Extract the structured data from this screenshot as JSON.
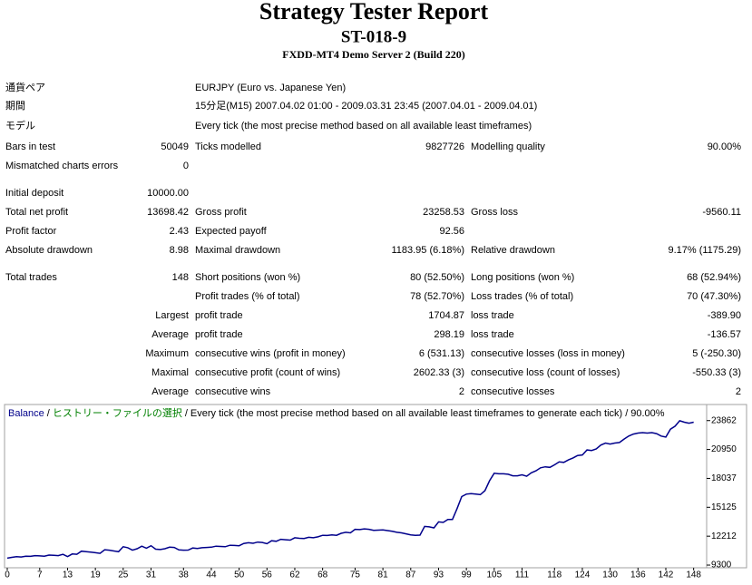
{
  "header": {
    "title": "Strategy Tester Report",
    "subtitle": "ST-018-9",
    "server": "FXDD-MT4 Demo Server 2 (Build 220)"
  },
  "table": {
    "rows": [
      {
        "label": "通貨ペア",
        "text": "EURJPY (Euro vs. Japanese Yen)"
      },
      {
        "label": "期間",
        "text": "15分足(M15) 2007.04.02 01:00 - 2009.03.31 23:45 (2007.04.01 - 2009.04.01)"
      },
      {
        "label": "モデル",
        "text": "Every tick (the most precise method based on all available least timeframes)"
      },
      {
        "label": "Bars in test",
        "value": "50049",
        "label2": "Ticks modelled",
        "value2": "9827726",
        "label3": "Modelling quality",
        "value3": "90.00%"
      },
      {
        "label": "Mismatched charts errors",
        "value": "0"
      },
      {
        "label": "Initial deposit",
        "value": "10000.00"
      },
      {
        "label": "Total net profit",
        "value": "13698.42",
        "label2": "Gross profit",
        "value2": "23258.53",
        "label3": "Gross loss",
        "value3": "-9560.11"
      },
      {
        "label": "Profit factor",
        "value": "2.43",
        "label2": "Expected payoff",
        "value2": "92.56"
      },
      {
        "label": "Absolute drawdown",
        "value": "8.98",
        "label2": "Maximal drawdown",
        "value2": "1183.95 (6.18%)",
        "label3": "Relative drawdown",
        "value3": "9.17% (1175.29)"
      },
      {
        "label": "Total trades",
        "value": "148",
        "label2": "Short positions (won %)",
        "value2": "80 (52.50%)",
        "label3": "Long positions (won %)",
        "value3": "68 (52.94%)"
      },
      {
        "label2": "Profit trades (% of total)",
        "value2": "78 (52.70%)",
        "label3": "Loss trades (% of total)",
        "value3": "70 (47.30%)"
      },
      {
        "group": "Largest",
        "label2": "profit trade",
        "value2": "1704.87",
        "label3": "loss trade",
        "value3": "-389.90"
      },
      {
        "group": "Average",
        "label2": "profit trade",
        "value2": "298.19",
        "label3": "loss trade",
        "value3": "-136.57"
      },
      {
        "group": "Maximum",
        "label2": "consecutive wins (profit in money)",
        "value2": "6 (531.13)",
        "label3": "consecutive losses (loss in money)",
        "value3": "5 (-250.30)"
      },
      {
        "group": "Maximal",
        "label2": "consecutive profit (count of wins)",
        "value2": "2602.33 (3)",
        "label3": "consecutive loss (count of losses)",
        "value3": "-550.33 (3)"
      },
      {
        "group": "Average",
        "label2": "consecutive wins",
        "value2": "2",
        "label3": "consecutive losses",
        "value3": "2"
      }
    ]
  },
  "chart_data": {
    "type": "line",
    "legend_separator": "/",
    "history": "ヒストリー・ファイルの選択",
    "mode": "Every tick (the most precise method based on all available least timeframes to generate each tick)",
    "quality": "90.00%",
    "xlim": [
      0,
      151
    ],
    "ylim": [
      9120,
      25300
    ],
    "xticks": [
      0,
      7,
      13,
      19,
      25,
      31,
      38,
      44,
      50,
      56,
      62,
      68,
      75,
      81,
      87,
      93,
      99,
      105,
      111,
      118,
      124,
      130,
      136,
      142,
      148
    ],
    "yticks": [
      9300,
      12212,
      15125,
      18037,
      20950,
      23862
    ],
    "series": [
      {
        "name": "Balance",
        "color": "#00008b",
        "history_color": "#008000",
        "values": [
          10000,
          10080,
          10150,
          10120,
          10200,
          10180,
          10250,
          10230,
          10200,
          10310,
          10290,
          10250,
          10380,
          10150,
          10420,
          10390,
          10700,
          10650,
          10600,
          10550,
          10480,
          10850,
          10800,
          10720,
          10650,
          11150,
          11050,
          10800,
          10950,
          11200,
          11000,
          11250,
          10900,
          10870,
          10950,
          11100,
          11080,
          10830,
          10800,
          10810,
          11020,
          10980,
          11050,
          11080,
          11100,
          11200,
          11180,
          11150,
          11300,
          11280,
          11250,
          11480,
          11550,
          11500,
          11620,
          11580,
          11450,
          11750,
          11700,
          11900,
          11850,
          11820,
          12050,
          12000,
          11980,
          12100,
          12050,
          12150,
          12300,
          12280,
          12350,
          12300,
          12500,
          12600,
          12550,
          12900,
          12880,
          12950,
          12900,
          12800,
          12820,
          12850,
          12780,
          12700,
          12600,
          12550,
          12450,
          12350,
          12300,
          12320,
          13200,
          13150,
          13050,
          13650,
          13600,
          13900,
          13900,
          15000,
          16200,
          16450,
          16500,
          16450,
          16400,
          16800,
          17800,
          18550,
          18500,
          18500,
          18450,
          18300,
          18300,
          18400,
          18250,
          18600,
          18800,
          19100,
          19200,
          19150,
          19400,
          19700,
          19650,
          19900,
          20100,
          20350,
          20400,
          20900,
          20850,
          21000,
          21400,
          21600,
          21500,
          21600,
          21650,
          22000,
          22300,
          22500,
          22600,
          22650,
          22600,
          22650,
          22550,
          22300,
          22200,
          23000,
          23300,
          23850,
          23700,
          23600,
          23698.42
        ]
      }
    ]
  }
}
